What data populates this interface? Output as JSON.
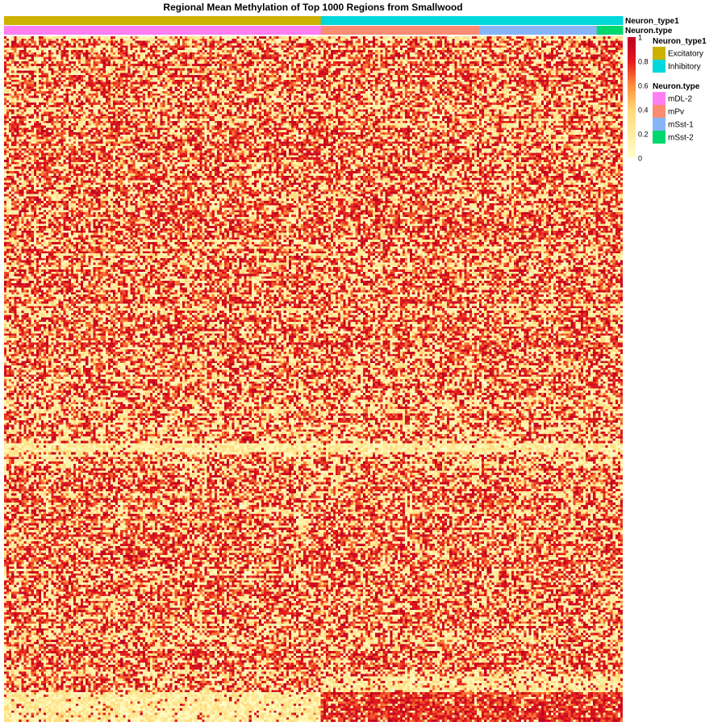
{
  "chart_data": {
    "type": "heatmap",
    "title": "Regional Mean Methylation of Top 1000 Regions from Smallwood",
    "value_range": [
      0,
      1
    ],
    "color_scale": {
      "stops": [
        {
          "value": 0.0,
          "color": "#FFFFCC"
        },
        {
          "value": 0.2,
          "color": "#FFEDA0"
        },
        {
          "value": 0.4,
          "color": "#FED976"
        },
        {
          "value": 0.6,
          "color": "#FD8D3C"
        },
        {
          "value": 0.8,
          "color": "#E31A1C"
        },
        {
          "value": 1.0,
          "color": "#BD0026"
        }
      ],
      "ticks": [
        "1",
        "0.8",
        "0.6",
        "0.4",
        "0.2",
        "0"
      ]
    },
    "annotations": [
      {
        "name": "Neuron_type1",
        "segments": [
          {
            "label": "Excitatory",
            "color": "#CDB000",
            "fraction": 0.512
          },
          {
            "label": "Inhibitory",
            "color": "#00D8DC",
            "fraction": 0.488
          }
        ]
      },
      {
        "name": "Neuron.type",
        "segments": [
          {
            "label": "mDL-2",
            "color": "#FF7FF2",
            "fraction": 0.512
          },
          {
            "label": "mPv",
            "color": "#FA8C72",
            "fraction": 0.256
          },
          {
            "label": "mSst-1",
            "color": "#87B4F8",
            "fraction": 0.19
          },
          {
            "label": "mSst-2",
            "color": "#00D86E",
            "fraction": 0.042
          }
        ]
      }
    ],
    "legends": [
      {
        "title": "Neuron_type1",
        "items": [
          {
            "label": "Excitatory",
            "color": "#CDB000"
          },
          {
            "label": "Inhibitory",
            "color": "#00D8DC"
          }
        ]
      },
      {
        "title": "Neuron.type",
        "items": [
          {
            "label": "mDL-2",
            "color": "#FF7FF2"
          },
          {
            "label": "mPv",
            "color": "#FA8C72"
          },
          {
            "label": "mSst-1",
            "color": "#87B4F8"
          },
          {
            "label": "mSst-2",
            "color": "#00D86E"
          }
        ]
      }
    ],
    "grid": false
  }
}
